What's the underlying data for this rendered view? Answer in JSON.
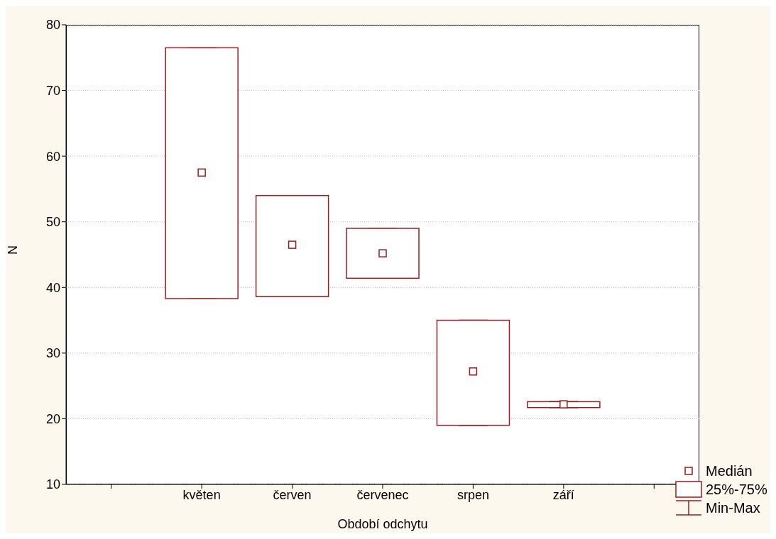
{
  "chart_data": {
    "type": "box",
    "xlabel": "Období odchytu",
    "ylabel": "N",
    "categories": [
      null,
      "květen",
      "červen",
      "červenec",
      "srpen",
      "září",
      null
    ],
    "color": "#9b1c1c",
    "boxes": [
      null,
      {
        "low": 38.3,
        "q1": 38.3,
        "median": 57.5,
        "q3": 76.5,
        "high": 76.5
      },
      {
        "low": 38.6,
        "q1": 38.6,
        "median": 46.5,
        "q3": 54.0,
        "high": 54.0
      },
      {
        "low": 41.4,
        "q1": 41.4,
        "median": 45.2,
        "q3": 49.0,
        "high": 49.0
      },
      {
        "low": 19.0,
        "q1": 19.0,
        "median": 27.2,
        "q3": 35.0,
        "high": 35.0
      },
      {
        "low": 21.7,
        "q1": 21.7,
        "median": 22.2,
        "q3": 22.6,
        "high": 22.6
      },
      null
    ],
    "annotations": [
      "Medián",
      "25%-75%",
      "Min-Max"
    ],
    "ylim": [
      10,
      80
    ],
    "yticks": [
      10,
      20,
      30,
      40,
      50,
      60,
      70,
      80
    ],
    "grid": "y",
    "marker": "square"
  }
}
